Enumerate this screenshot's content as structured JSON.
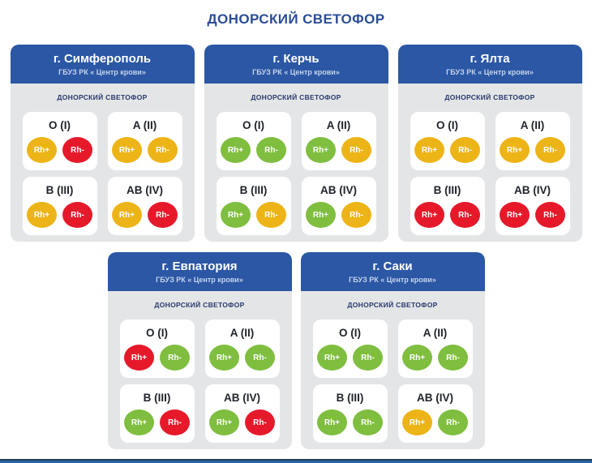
{
  "page": {
    "title": "ДОНОРСКИЙ СВЕТОФОР"
  },
  "board_label": "ДОНОРСКИЙ СВЕТОФОР",
  "colors": {
    "green": "#7FBE3F",
    "yellow": "#EDB418",
    "red": "#E6192B",
    "header_blue": "#2B57A5",
    "title_blue": "#2B4C97",
    "card_gray": "#E4E5E6",
    "footer_blue": "#2D5FA6"
  },
  "centers": [
    {
      "city": "г. Симферополь",
      "org": "ГБУЗ РК « Центр крови»",
      "groups": [
        {
          "label": "O (I)",
          "pills": [
            {
              "label": "Rh+",
              "status": "yellow"
            },
            {
              "label": "Rh-",
              "status": "red"
            }
          ]
        },
        {
          "label": "A (II)",
          "pills": [
            {
              "label": "Rh+",
              "status": "yellow"
            },
            {
              "label": "Rh-",
              "status": "yellow"
            }
          ]
        },
        {
          "label": "B (III)",
          "pills": [
            {
              "label": "Rh+",
              "status": "yellow"
            },
            {
              "label": "Rh-",
              "status": "red"
            }
          ]
        },
        {
          "label": "AB (IV)",
          "pills": [
            {
              "label": "Rh+",
              "status": "yellow"
            },
            {
              "label": "Rh-",
              "status": "red"
            }
          ]
        }
      ]
    },
    {
      "city": "г. Керчь",
      "org": "ГБУЗ РК « Центр крови»",
      "groups": [
        {
          "label": "O (I)",
          "pills": [
            {
              "label": "Rh+",
              "status": "green"
            },
            {
              "label": "Rh-",
              "status": "green"
            }
          ]
        },
        {
          "label": "A (II)",
          "pills": [
            {
              "label": "Rh+",
              "status": "green"
            },
            {
              "label": "Rh-",
              "status": "yellow"
            }
          ]
        },
        {
          "label": "B (III)",
          "pills": [
            {
              "label": "Rh+",
              "status": "green"
            },
            {
              "label": "Rh-",
              "status": "yellow"
            }
          ]
        },
        {
          "label": "AB (IV)",
          "pills": [
            {
              "label": "Rh+",
              "status": "green"
            },
            {
              "label": "Rh-",
              "status": "yellow"
            }
          ]
        }
      ]
    },
    {
      "city": "г. Ялта",
      "org": "ГБУЗ РК « Центр крови»",
      "groups": [
        {
          "label": "O (I)",
          "pills": [
            {
              "label": "Rh+",
              "status": "yellow"
            },
            {
              "label": "Rh-",
              "status": "yellow"
            }
          ]
        },
        {
          "label": "A (II)",
          "pills": [
            {
              "label": "Rh+",
              "status": "yellow"
            },
            {
              "label": "Rh-",
              "status": "yellow"
            }
          ]
        },
        {
          "label": "B (III)",
          "pills": [
            {
              "label": "Rh+",
              "status": "red"
            },
            {
              "label": "Rh-",
              "status": "red"
            }
          ]
        },
        {
          "label": "AB (IV)",
          "pills": [
            {
              "label": "Rh+",
              "status": "red"
            },
            {
              "label": "Rh-",
              "status": "red"
            }
          ]
        }
      ]
    },
    {
      "city": "г. Евпатория",
      "org": "ГБУЗ РК « Центр крови»",
      "groups": [
        {
          "label": "O (I)",
          "pills": [
            {
              "label": "Rh+",
              "status": "red"
            },
            {
              "label": "Rh-",
              "status": "green"
            }
          ]
        },
        {
          "label": "A (II)",
          "pills": [
            {
              "label": "Rh+",
              "status": "green"
            },
            {
              "label": "Rh-",
              "status": "green"
            }
          ]
        },
        {
          "label": "B (III)",
          "pills": [
            {
              "label": "Rh+",
              "status": "green"
            },
            {
              "label": "Rh-",
              "status": "red"
            }
          ]
        },
        {
          "label": "AB (IV)",
          "pills": [
            {
              "label": "Rh+",
              "status": "green"
            },
            {
              "label": "Rh-",
              "status": "red"
            }
          ]
        }
      ]
    },
    {
      "city": "г. Саки",
      "org": "ГБУЗ РК « Центр крови»",
      "groups": [
        {
          "label": "O (I)",
          "pills": [
            {
              "label": "Rh+",
              "status": "green"
            },
            {
              "label": "Rh-",
              "status": "green"
            }
          ]
        },
        {
          "label": "A (II)",
          "pills": [
            {
              "label": "Rh+",
              "status": "green"
            },
            {
              "label": "Rh-",
              "status": "green"
            }
          ]
        },
        {
          "label": "B (III)",
          "pills": [
            {
              "label": "Rh+",
              "status": "green"
            },
            {
              "label": "Rh-",
              "status": "green"
            }
          ]
        },
        {
          "label": "AB (IV)",
          "pills": [
            {
              "label": "Rh+",
              "status": "yellow"
            },
            {
              "label": "Rh-",
              "status": "green"
            }
          ]
        }
      ]
    }
  ]
}
